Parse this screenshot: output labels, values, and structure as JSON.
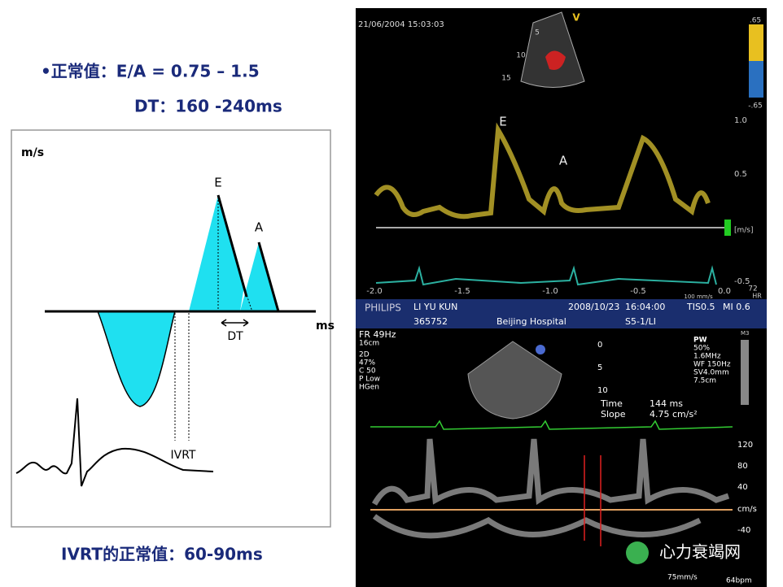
{
  "slide": {
    "normal_ea": "•正常值：E/A = 0.75 – 1.5",
    "normal_dt": "DT：160 -240ms",
    "ivrt_normal": "IVRT的正常值：60-90ms"
  },
  "diagram": {
    "y_unit": "m/s",
    "x_unit": "ms",
    "e_label": "E",
    "a_label": "A",
    "dt_label": "DT",
    "ivrt_label": "IVRT"
  },
  "echo_top": {
    "timestamp": "21/06/2004 15:03:03",
    "e_label": "E",
    "a_label": "A",
    "probe_mark": "V",
    "depth_labels": [
      "5",
      "10",
      "15"
    ],
    "time_labels": [
      "-2.0",
      "-1.5",
      "-1.0",
      "-0.5",
      "0.0"
    ],
    "velocity_labels": [
      "1.0",
      "0.5",
      "[m/s]",
      "-0.5"
    ],
    "color_scale": [
      ".65",
      "-.65"
    ],
    "heart_rate": "72",
    "hr_label": "HR",
    "sweep": "100 mm/s"
  },
  "echo_bottom": {
    "brand": "PHILIPS",
    "patient": "LI YU KUN",
    "date": "2008/10/23",
    "time": "16:04:00",
    "tis": "TIS0.5",
    "mi": "MI 0.6",
    "patient_id": "365752",
    "hospital": "Beijing Hospital",
    "probe": "S5-1/LI",
    "left_params": [
      "FR 49Hz",
      "16cm",
      "2D",
      "47%",
      "C 50",
      "P Low",
      "HGen"
    ],
    "right_params": [
      "PW",
      "50%",
      "1.6MHz",
      "WF 150Hz",
      "SV4.0mm",
      "7.5cm"
    ],
    "map": "M3",
    "depth_labels": [
      "0",
      "5",
      "10"
    ],
    "measure": [
      "Time",
      "144 ms",
      "Slope",
      "4.75 cm/s²"
    ],
    "velocity_labels": [
      "120",
      "80",
      "40",
      "cm/s",
      "-40"
    ],
    "sweep": "75mm/s",
    "bpm": "64bpm"
  },
  "watermark": "心力衰竭网"
}
